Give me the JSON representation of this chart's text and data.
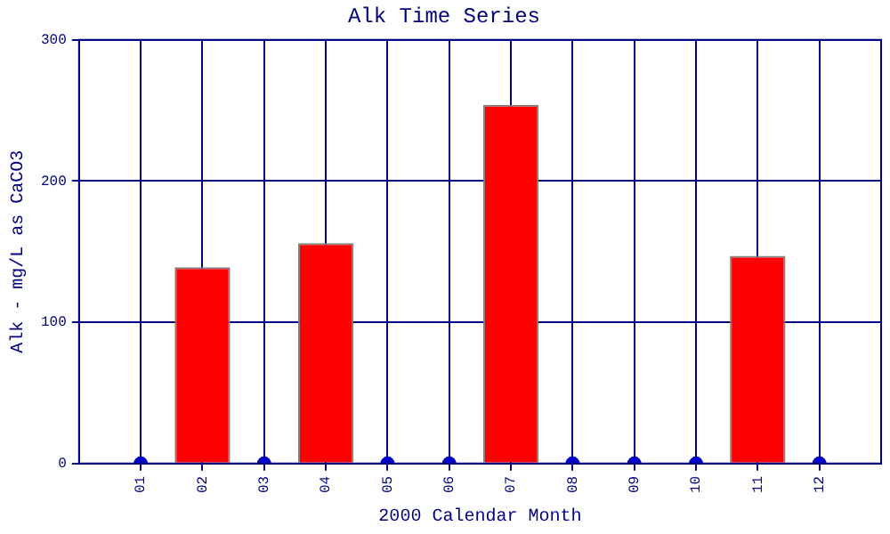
{
  "chart_data": {
    "type": "bar",
    "title": "Alk Time Series",
    "xlabel": "2000 Calendar Month",
    "ylabel": "Alk - mg/L as CaCO3",
    "categories": [
      "01",
      "02",
      "03",
      "04",
      "05",
      "06",
      "07",
      "08",
      "09",
      "10",
      "11",
      "12"
    ],
    "series": [
      {
        "color": "#ff0000",
        "values": [
          null,
          139,
          null,
          156,
          null,
          null,
          254,
          null,
          null,
          null,
          147,
          null
        ]
      },
      {
        "type": "scatter",
        "color": "#0000cc",
        "values": [
          0,
          null,
          0,
          null,
          0,
          0,
          null,
          0,
          0,
          0,
          null,
          0
        ]
      }
    ],
    "ylim": [
      0,
      300
    ],
    "yticks": [
      0,
      100,
      200,
      300
    ],
    "grid": true,
    "legend": false,
    "marker": "circle"
  }
}
